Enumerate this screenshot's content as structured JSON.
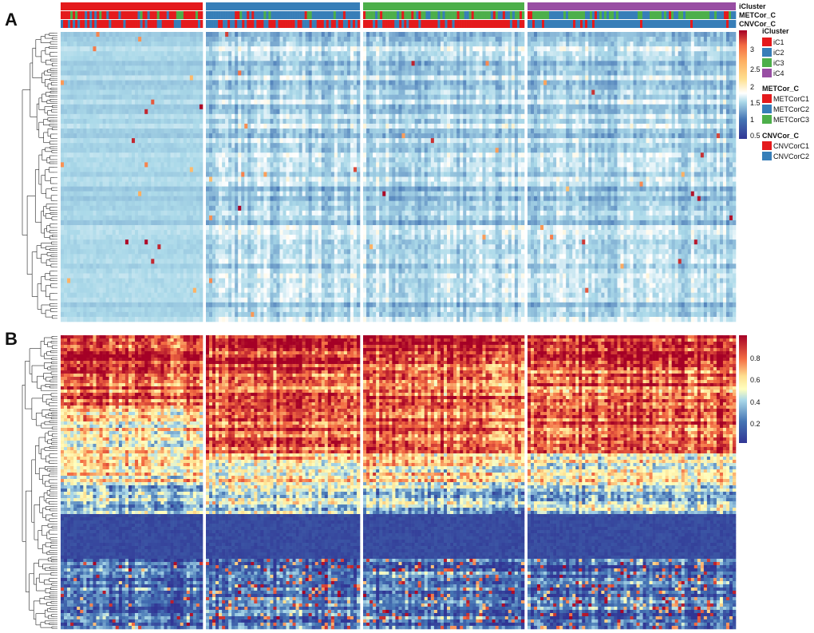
{
  "panel_labels": [
    "A",
    "B"
  ],
  "annotation_tracks": [
    "iCluster",
    "METCor_C",
    "CNVCor_C"
  ],
  "legends": [
    {
      "title": "iCluster",
      "items": [
        {
          "label": "iC1",
          "color": "#e41a1c"
        },
        {
          "label": "iC2",
          "color": "#377eb8"
        },
        {
          "label": "iC3",
          "color": "#4daf4a"
        },
        {
          "label": "iC4",
          "color": "#984ea3"
        }
      ]
    },
    {
      "title": "METCor_C",
      "items": [
        {
          "label": "METCorC1",
          "color": "#e41a1c"
        },
        {
          "label": "METCorC2",
          "color": "#377eb8"
        },
        {
          "label": "METCorC3",
          "color": "#4daf4a"
        }
      ]
    },
    {
      "title": "CNVCor_C",
      "items": [
        {
          "label": "CNVCorC1",
          "color": "#e41a1c"
        },
        {
          "label": "CNVCorC2",
          "color": "#377eb8"
        }
      ]
    }
  ],
  "chart_data": [
    {
      "type": "heatmap",
      "panel": "A",
      "column_groups": [
        "iC1",
        "iC2",
        "iC3",
        "iC4"
      ],
      "color_scale": {
        "ticks": [
          0.5,
          1,
          1.5,
          2,
          2.5,
          3
        ],
        "tick_labels": [
          "0.5",
          "1",
          "1.5",
          "2",
          "2.5",
          "3"
        ],
        "range": [
          0.2,
          3.2
        ]
      },
      "row_dendrogram": true,
      "typical_value": 1.2
    },
    {
      "type": "heatmap",
      "panel": "B",
      "column_groups": [
        "iC1",
        "iC2",
        "iC3",
        "iC4"
      ],
      "color_scale": {
        "ticks": [
          0.2,
          0.4,
          0.6,
          0.8
        ],
        "tick_labels": [
          "0.2",
          "0.4",
          "0.6",
          "0.8"
        ],
        "range": [
          0.05,
          0.95
        ]
      },
      "row_dendrogram": true,
      "row_bands": [
        {
          "from": 0.0,
          "to": 0.09,
          "value": 0.88
        },
        {
          "from": 0.09,
          "to": 0.24,
          "value": 0.78
        },
        {
          "from": 0.24,
          "to": 0.4,
          "value": 0.62
        },
        {
          "from": 0.4,
          "to": 0.51,
          "value": 0.55
        },
        {
          "from": 0.51,
          "to": 0.6,
          "value": 0.4
        },
        {
          "from": 0.6,
          "to": 0.76,
          "value": 0.08
        },
        {
          "from": 0.76,
          "to": 1.0,
          "value": 0.22
        }
      ]
    }
  ]
}
